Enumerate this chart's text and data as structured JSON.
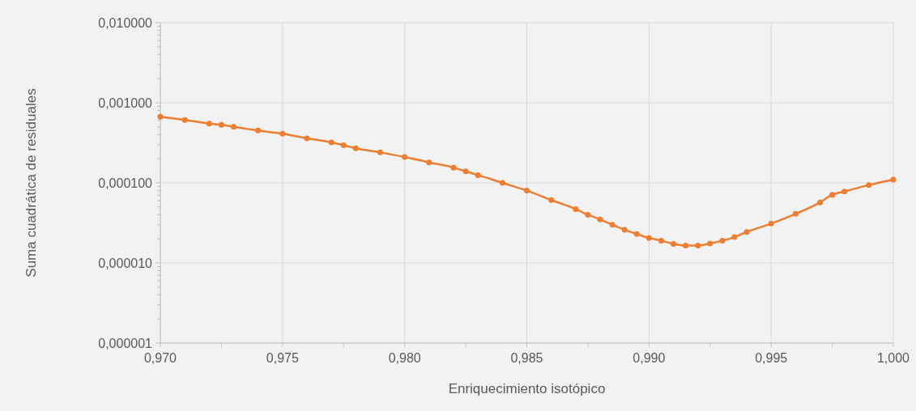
{
  "chart_data": {
    "type": "line",
    "xlabel": "Enriquecimiento isotópico",
    "ylabel": "Suma cuadrática de residuales",
    "log": "y",
    "grid": true,
    "marker": "circle",
    "line_style": "solid",
    "xlim": [
      0.97,
      1.0
    ],
    "xticks": [
      {
        "value": 0.97,
        "label": "0,970"
      },
      {
        "value": 0.9725,
        "label": null
      },
      {
        "value": 0.975,
        "label": "0,975"
      },
      {
        "value": 0.9775,
        "label": null
      },
      {
        "value": 0.98,
        "label": "0,980"
      },
      {
        "value": 0.9825,
        "label": null
      },
      {
        "value": 0.985,
        "label": "0,985"
      },
      {
        "value": 0.9875,
        "label": null
      },
      {
        "value": 0.99,
        "label": "0,990"
      },
      {
        "value": 0.9925,
        "label": null
      },
      {
        "value": 0.995,
        "label": "0,995"
      },
      {
        "value": 0.9975,
        "label": null
      },
      {
        "value": 1.0,
        "label": "1,000"
      }
    ],
    "ylim": [
      1e-06,
      0.01
    ],
    "yticks": [
      {
        "value": 1e-06,
        "label": "0,000001"
      },
      {
        "value": 1e-05,
        "label": "0,000010"
      },
      {
        "value": 0.0001,
        "label": "0,000100"
      },
      {
        "value": 0.001,
        "label": "0,001000"
      },
      {
        "value": 0.01,
        "label": "0,010000"
      }
    ],
    "series": [
      {
        "color": "#ed7d31",
        "x": [
          0.97,
          0.971,
          0.972,
          0.9725,
          0.973,
          0.974,
          0.975,
          0.976,
          0.977,
          0.9775,
          0.978,
          0.979,
          0.98,
          0.981,
          0.982,
          0.9825,
          0.983,
          0.984,
          0.985,
          0.986,
          0.987,
          0.9875,
          0.988,
          0.9885,
          0.989,
          0.9895,
          0.99,
          0.9905,
          0.991,
          0.9915,
          0.992,
          0.9925,
          0.993,
          0.9935,
          0.994,
          0.995,
          0.996,
          0.997,
          0.9975,
          0.998,
          0.999,
          1.0
        ],
        "values": [
          0.00067,
          0.00061,
          0.00055,
          0.00053,
          0.0005,
          0.00045,
          0.00041,
          0.00036,
          0.00032,
          0.000295,
          0.00027,
          0.00024,
          0.00021,
          0.00018,
          0.000155,
          0.000139,
          0.000125,
          0.0001,
          8e-05,
          6.1e-05,
          4.7e-05,
          4e-05,
          3.5e-05,
          3e-05,
          2.6e-05,
          2.3e-05,
          2.05e-05,
          1.9e-05,
          1.73e-05,
          1.65e-05,
          1.65e-05,
          1.75e-05,
          1.9e-05,
          2.1e-05,
          2.44e-05,
          3.1e-05,
          4.1e-05,
          5.7e-05,
          7.1e-05,
          7.8e-05,
          9.4e-05,
          0.00011
        ]
      }
    ]
  }
}
